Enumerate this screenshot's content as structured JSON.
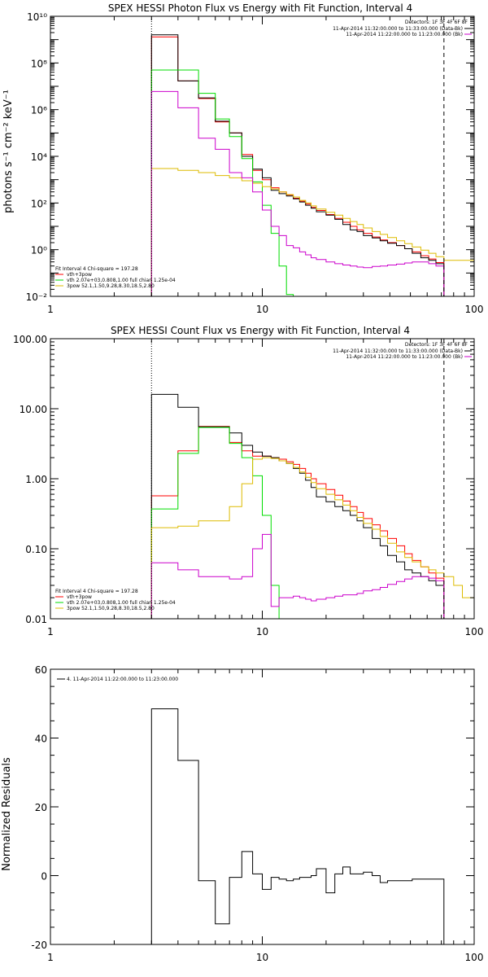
{
  "chart_data": [
    {
      "type": "line",
      "title": "SPEX HESSI Photon Flux vs Energy with Fit Function, Interval 4",
      "ylabel": "photons s⁻¹ cm⁻² keV⁻¹",
      "xlabel": "",
      "x_scale": "log",
      "y_scale": "log",
      "xlim": [
        1,
        100
      ],
      "ylim": [
        0.01,
        10000000000.0
      ],
      "x_ticks": [
        "1",
        "10",
        "100"
      ],
      "y_ticks": [
        "10⁻²",
        "10⁰",
        "10²",
        "10⁴",
        "10⁶",
        "10⁸",
        "10¹⁰"
      ],
      "y_tick_values": [
        0.01,
        1,
        100,
        10000,
        1000000,
        100000000,
        10000000000
      ],
      "detector_label": "Detectors: 1F 3F 4F 6F 8F",
      "legend_top": [
        {
          "label": "11-Apr-2014 11:32:00.000 to 11:33:00.000 (Data-Bk)",
          "color": "#000000"
        },
        {
          "label": "11-Apr-2014 11:22:00.000 to 11:23:00.000 (Bk)",
          "color": "#cc00cc"
        }
      ],
      "legend_bottom": [
        {
          "label": "Fit Interval  4    Chi-square = 197.28",
          "color": null
        },
        {
          "label": "vth+3pow",
          "color": "#ff0000"
        },
        {
          "label": "vth 2.07e+03,0.808,1.00  full chian 1.25e-04",
          "color": "#00dd00"
        },
        {
          "label": "3pow 52.1,1.50,9.28,8.30,18.5,2.80",
          "color": "#ddbb00"
        }
      ],
      "vlines": [
        {
          "x": 3.0,
          "style": "dotted"
        },
        {
          "x": 72.0,
          "style": "dashed"
        }
      ],
      "edges": [
        3,
        4,
        5,
        6,
        7,
        8,
        9,
        10,
        11,
        12,
        13,
        14,
        15,
        16,
        17,
        18,
        20,
        22,
        24,
        26,
        28,
        30,
        33,
        36,
        39,
        43,
        47,
        51,
        56,
        61,
        66,
        72
      ],
      "series": [
        {
          "name": "vth+3pow",
          "color": "#ff0000",
          "x_start": 3,
          "x_end": 72,
          "values": [
            1300000000.0,
            17000000.0,
            3000000.0,
            300000.0,
            100000.0,
            12000.0,
            2500.0,
            1000,
            450,
            300,
            220,
            160,
            120,
            90,
            65,
            48,
            32,
            22,
            15,
            10,
            7,
            5,
            3.5,
            2.6,
            2.0,
            1.5,
            1.1,
            0.8,
            0.55,
            0.4,
            0.28
          ]
        },
        {
          "name": "Data-Bk",
          "color": "#000000",
          "x_start": 3,
          "x_end": 72,
          "values": [
            1600000000.0,
            17000000.0,
            3200000.0,
            320000.0,
            100000.0,
            10000.0,
            2800.0,
            1200,
            350,
            250,
            200,
            150,
            110,
            80,
            60,
            42,
            30,
            20,
            12,
            7,
            6,
            4,
            3.2,
            2.4,
            1.9,
            1.5,
            1.1,
            0.7,
            0.45,
            0.35,
            0.25
          ]
        },
        {
          "name": "vth",
          "color": "#00dd00",
          "x_start": 3,
          "x_end": 14,
          "values": [
            50000000.0,
            50000000.0,
            5000000.0,
            400000.0,
            70000.0,
            8000.0,
            800,
            80,
            5,
            0.2,
            0.012
          ]
        },
        {
          "name": "3pow",
          "color": "#ddbb00",
          "x_start": 3,
          "x_end": 100,
          "values": [
            3000,
            2500,
            2000,
            1500,
            1200,
            900,
            700,
            500,
            400,
            300,
            230,
            180,
            130,
            100,
            75,
            55,
            40,
            30,
            22,
            16,
            12,
            8.5,
            6,
            4.5,
            3.3,
            2.4,
            1.8,
            1.3,
            0.95,
            0.7,
            0.5,
            0.35,
            0.25,
            0.18,
            0.14,
            0.11,
            0.09
          ]
        },
        {
          "name": "Bk",
          "color": "#cc00cc",
          "x_start": 3,
          "x_end": 72,
          "values": [
            6000000.0,
            1200000.0,
            60000.0,
            20000.0,
            2000.0,
            1200.0,
            300,
            50,
            10,
            4,
            1.5,
            1.2,
            0.8,
            0.6,
            0.45,
            0.38,
            0.3,
            0.25,
            0.22,
            0.2,
            0.18,
            0.17,
            0.19,
            0.2,
            0.22,
            0.24,
            0.27,
            0.3,
            0.3,
            0.25,
            0.2
          ]
        }
      ]
    },
    {
      "type": "line",
      "title": "SPEX HESSI Count Flux vs Energy with Fit Function, Interval 4",
      "ylabel": "",
      "xlabel": "",
      "x_scale": "log",
      "y_scale": "log",
      "xlim": [
        1,
        100
      ],
      "ylim": [
        0.01,
        100
      ],
      "x_ticks": [
        "1",
        "10",
        "100"
      ],
      "y_ticks": [
        "0.01",
        "0.10",
        "1.00",
        "10.00",
        "100.00"
      ],
      "y_tick_values": [
        0.01,
        0.1,
        1,
        10,
        100
      ],
      "detector_label": "Detectors: 1F 3F 4F 6F 8F",
      "legend_top": [
        {
          "label": "11-Apr-2014 11:32:00.000 to 11:33:00.000 (Data-Bk)",
          "color": "#000000"
        },
        {
          "label": "11-Apr-2014 11:22:00.000 to 11:23:00.000 (Bk)",
          "color": "#cc00cc"
        }
      ],
      "legend_bottom": [
        {
          "label": "Fit Interval  4    Chi-square = 197.28",
          "color": null
        },
        {
          "label": "vth+3pow",
          "color": "#ff0000"
        },
        {
          "label": "vth 2.07e+03,0.808,1.00  full chian 1.25e-04",
          "color": "#00dd00"
        },
        {
          "label": "3pow 52.1,1.50,9.28,8.30,18.5,2.80",
          "color": "#ddbb00"
        }
      ],
      "vlines": [
        {
          "x": 3.0,
          "style": "dotted"
        },
        {
          "x": 72.0,
          "style": "dashed"
        }
      ],
      "edges": [
        3,
        4,
        5,
        7,
        8,
        9,
        10,
        11,
        12,
        13,
        14,
        15,
        16,
        17,
        18,
        20,
        22,
        24,
        26,
        28,
        30,
        33,
        36,
        39,
        43,
        47,
        51,
        56,
        61,
        66,
        72,
        80,
        88,
        100
      ],
      "series": [
        {
          "name": "vth+3pow",
          "color": "#ff0000",
          "x_start": 3,
          "x_end": 72,
          "values": [
            0.57,
            2.5,
            5.6,
            3.3,
            2.5,
            2.1,
            2.1,
            2.0,
            1.9,
            1.75,
            1.6,
            1.4,
            1.2,
            1.0,
            0.85,
            0.7,
            0.58,
            0.48,
            0.4,
            0.33,
            0.27,
            0.22,
            0.18,
            0.14,
            0.11,
            0.085,
            0.068,
            0.055,
            0.045,
            0.038
          ]
        },
        {
          "name": "Data-Bk",
          "color": "#000000",
          "x_start": 3,
          "x_end": 72,
          "values": [
            16,
            10.5,
            5.5,
            4.5,
            3.0,
            2.4,
            2.1,
            2.0,
            1.8,
            1.65,
            1.4,
            1.2,
            0.95,
            0.75,
            0.55,
            0.47,
            0.4,
            0.35,
            0.3,
            0.25,
            0.2,
            0.14,
            0.11,
            0.08,
            0.065,
            0.05,
            0.045,
            0.04,
            0.035,
            0.03
          ]
        },
        {
          "name": "vth",
          "color": "#00dd00",
          "x_start": 3,
          "x_end": 12.5,
          "values": [
            0.37,
            2.3,
            5.4,
            3.2,
            2.0,
            1.1,
            0.3,
            0.03,
            0.01
          ]
        },
        {
          "name": "3pow",
          "color": "#ddbb00",
          "x_start": 3,
          "x_end": 100,
          "values": [
            0.2,
            0.21,
            0.25,
            0.4,
            0.85,
            1.9,
            2.0,
            1.95,
            1.8,
            1.65,
            1.45,
            1.25,
            1.05,
            0.88,
            0.72,
            0.6,
            0.5,
            0.42,
            0.35,
            0.28,
            0.23,
            0.19,
            0.15,
            0.12,
            0.09,
            0.075,
            0.065,
            0.055,
            0.05,
            0.045,
            0.04,
            0.03,
            0.02
          ]
        },
        {
          "name": "Bk",
          "color": "#cc00cc",
          "x_start": 3,
          "x_end": 72,
          "values": [
            0.063,
            0.05,
            0.04,
            0.037,
            0.04,
            0.1,
            0.16,
            0.015,
            0.02,
            0.02,
            0.021,
            0.02,
            0.019,
            0.018,
            0.019,
            0.02,
            0.021,
            0.022,
            0.022,
            0.023,
            0.025,
            0.026,
            0.028,
            0.031,
            0.034,
            0.037,
            0.04,
            0.04,
            0.038,
            0.035
          ]
        }
      ]
    },
    {
      "type": "line",
      "title": "",
      "ylabel": "Normalized Residuals",
      "xlabel": "",
      "x_scale": "log",
      "y_scale": "linear",
      "xlim": [
        1,
        100
      ],
      "ylim": [
        -20,
        60
      ],
      "x_ticks": [
        "1",
        "10",
        "100"
      ],
      "y_ticks": [
        "-20",
        "0",
        "20",
        "40",
        "60"
      ],
      "y_tick_values": [
        -20,
        0,
        20,
        40,
        60
      ],
      "legend_top": [
        {
          "label": "4. 11-Apr-2014 11:22:00.000 to 11:23:00.000",
          "color": "#000000"
        }
      ],
      "edges": [
        3,
        4,
        5,
        6,
        7,
        8,
        9,
        10,
        11,
        12,
        13,
        14,
        15,
        16,
        17,
        18,
        20,
        22,
        24,
        26,
        28,
        30,
        33,
        36,
        39,
        43,
        47,
        51,
        56,
        61,
        66,
        72
      ],
      "series": [
        {
          "name": "4. 11-Apr-2014 11:22:00.000 to 11:23:00.000",
          "color": "#000000",
          "x_start": 3,
          "x_end": 72,
          "values": [
            48.5,
            33.5,
            -1.5,
            -14,
            -0.5,
            7,
            0.5,
            -4,
            -0.5,
            -1,
            -1.5,
            -1,
            -0.5,
            -0.5,
            0,
            2,
            -5,
            0.5,
            2.5,
            0.5,
            0.5,
            1,
            0,
            -2,
            -1.5,
            -1.5,
            -1.5,
            -1,
            -1,
            -1,
            -1
          ]
        }
      ]
    }
  ]
}
